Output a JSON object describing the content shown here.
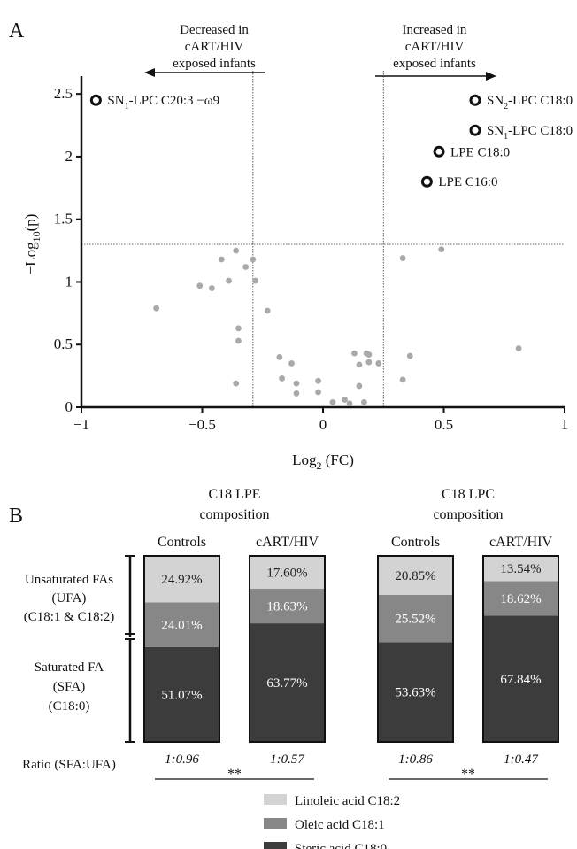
{
  "panel_a_letter": "A",
  "panel_b_letter": "B",
  "chart_data": [
    {
      "type": "scatter",
      "xlabel": "Log",
      "xlabel_sub": "2",
      "xlabel_tail": " (FC)",
      "ylabel": "−Log",
      "ylabel_sub": "10",
      "ylabel_tail": "(p)",
      "xlim": [
        -1,
        1
      ],
      "ylim": [
        0,
        2.6
      ],
      "xticks": [
        -1,
        -0.5,
        0,
        0.5,
        1
      ],
      "xtick_labels": [
        "−1",
        "−0.5",
        "0",
        "0.5",
        "1"
      ],
      "yticks": [
        0,
        0.5,
        1,
        1.5,
        2,
        2.5
      ],
      "ytick_labels": [
        "0",
        "0.5",
        "1",
        "1.5",
        "2",
        "2.5"
      ],
      "threshold_y": 1.3,
      "threshold_x": [
        -0.29,
        0.25
      ],
      "annotation_left": [
        "Decreased in",
        "cART/HIV",
        "exposed infants"
      ],
      "annotation_right": [
        "Increased in",
        "cART/HIV",
        "exposed infants"
      ],
      "highlighted": [
        {
          "x": -0.94,
          "y": 2.45,
          "label_pre": "SN",
          "label_sub": "1",
          "label_post": "-LPC C20:3 −ω9"
        },
        {
          "x": 0.63,
          "y": 2.45,
          "label_pre": "SN",
          "label_sub": "2",
          "label_post": "-LPC C18:0"
        },
        {
          "x": 0.63,
          "y": 2.21,
          "label_pre": "SN",
          "label_sub": "1",
          "label_post": "-LPC C18:0"
        },
        {
          "x": 0.48,
          "y": 2.04,
          "label_pre": "LPE C18:0",
          "label_sub": "",
          "label_post": ""
        },
        {
          "x": 0.43,
          "y": 1.8,
          "label_pre": "LPE C16:0",
          "label_sub": "",
          "label_post": ""
        }
      ],
      "points": [
        [
          -0.69,
          0.79
        ],
        [
          -0.51,
          0.97
        ],
        [
          -0.46,
          0.95
        ],
        [
          -0.42,
          1.18
        ],
        [
          -0.39,
          1.01
        ],
        [
          -0.36,
          1.25
        ],
        [
          -0.32,
          1.12
        ],
        [
          -0.29,
          1.18
        ],
        [
          -0.28,
          1.01
        ],
        [
          -0.35,
          0.63
        ],
        [
          -0.35,
          0.53
        ],
        [
          -0.36,
          0.19
        ],
        [
          -0.23,
          0.77
        ],
        [
          -0.18,
          0.4
        ],
        [
          -0.17,
          0.23
        ],
        [
          -0.13,
          0.35
        ],
        [
          -0.11,
          0.19
        ],
        [
          -0.11,
          0.11
        ],
        [
          -0.02,
          0.21
        ],
        [
          -0.02,
          0.12
        ],
        [
          0.04,
          0.04
        ],
        [
          0.09,
          0.06
        ],
        [
          0.11,
          0.03
        ],
        [
          0.13,
          0.43
        ],
        [
          0.15,
          0.34
        ],
        [
          0.15,
          0.17
        ],
        [
          0.18,
          0.43
        ],
        [
          0.19,
          0.42
        ],
        [
          0.19,
          0.36
        ],
        [
          0.23,
          0.35
        ],
        [
          0.17,
          0.04
        ],
        [
          0.33,
          0.22
        ],
        [
          0.36,
          0.41
        ],
        [
          0.33,
          1.19
        ],
        [
          0.49,
          1.26
        ],
        [
          0.81,
          0.47
        ]
      ]
    },
    {
      "type": "bar",
      "stacked": true,
      "groups": [
        {
          "title": [
            "C18 LPE",
            "composition"
          ],
          "bars": [
            {
              "name": "Controls",
              "values": [
                51.07,
                24.01,
                24.92
              ],
              "labels": [
                "51.07%",
                "24.01%",
                "24.92%"
              ],
              "ratio": "1:0.96"
            },
            {
              "name": "cART/HIV",
              "values": [
                63.77,
                18.63,
                17.6
              ],
              "labels": [
                "63.77%",
                "18.63%",
                "17.60%"
              ],
              "ratio": "1:0.57"
            }
          ],
          "significance": "**"
        },
        {
          "title": [
            "C18 LPC",
            "composition"
          ],
          "bars": [
            {
              "name": "Controls",
              "values": [
                53.63,
                25.52,
                20.85
              ],
              "labels": [
                "53.63%",
                "25.52%",
                "20.85%"
              ],
              "ratio": "1:0.86"
            },
            {
              "name": "cART/HIV",
              "values": [
                67.84,
                18.62,
                13.54
              ],
              "labels": [
                "67.84%",
                "18.62%",
                "13.54%"
              ],
              "ratio": "1:0.47"
            }
          ],
          "significance": "**"
        }
      ],
      "legend": [
        {
          "name": "Linoleic acid C18:2",
          "color": "#d3d3d3"
        },
        {
          "name": "Oleic acid C18:1",
          "color": "#878787"
        },
        {
          "name": "Steric acid C18:0",
          "color": "#3c3c3c"
        }
      ],
      "segment_colors": [
        "#3c3c3c",
        "#878787",
        "#d3d3d3"
      ],
      "bracket_upper": [
        "Unsaturated FAs",
        "(UFA)",
        "(C18:1 & C18:2)"
      ],
      "bracket_lower": [
        "Saturated FA",
        "(SFA)",
        "(C18:0)"
      ],
      "ratio_label": "Ratio (SFA:UFA)"
    }
  ]
}
